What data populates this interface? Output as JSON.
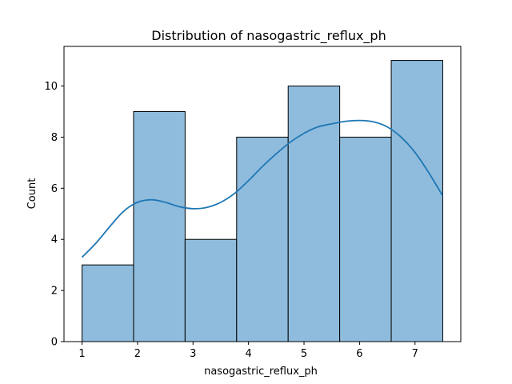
{
  "chart_data": {
    "type": "histogram",
    "title": "Distribution of nasogastric_reflux_ph",
    "xlabel": "nasogastric_reflux_ph",
    "ylabel": "Count",
    "xlim": [
      0.675,
      7.825
    ],
    "ylim": [
      0,
      11.55
    ],
    "xticks": [
      1,
      2,
      3,
      4,
      5,
      6,
      7
    ],
    "yticks": [
      0,
      2,
      4,
      6,
      8,
      10
    ],
    "bins": [
      {
        "start": 1.0,
        "end": 1.9286,
        "count": 3
      },
      {
        "start": 1.9286,
        "end": 2.8571,
        "count": 9
      },
      {
        "start": 2.8571,
        "end": 3.7857,
        "count": 4
      },
      {
        "start": 3.7857,
        "end": 4.7143,
        "count": 8
      },
      {
        "start": 4.7143,
        "end": 5.6429,
        "count": 10
      },
      {
        "start": 5.6429,
        "end": 6.5714,
        "count": 8
      },
      {
        "start": 6.5714,
        "end": 7.5,
        "count": 11
      }
    ],
    "kde": {
      "x": [
        1.0,
        1.25,
        1.5,
        1.75,
        2.0,
        2.25,
        2.5,
        2.75,
        3.0,
        3.25,
        3.5,
        3.75,
        4.0,
        4.25,
        4.5,
        4.75,
        5.0,
        5.25,
        5.5,
        5.75,
        6.0,
        6.25,
        6.5,
        6.75,
        7.0,
        7.25,
        7.5
      ],
      "y": [
        3.3,
        3.85,
        4.5,
        5.1,
        5.45,
        5.55,
        5.45,
        5.28,
        5.2,
        5.25,
        5.45,
        5.8,
        6.3,
        6.85,
        7.35,
        7.8,
        8.15,
        8.4,
        8.52,
        8.62,
        8.65,
        8.6,
        8.4,
        8.0,
        7.4,
        6.6,
        5.7
      ]
    },
    "grid": false,
    "legend": "none",
    "bar_color": "#8fbcdd",
    "bar_edge_color": "#000000",
    "kde_color": "#1f77b4"
  }
}
